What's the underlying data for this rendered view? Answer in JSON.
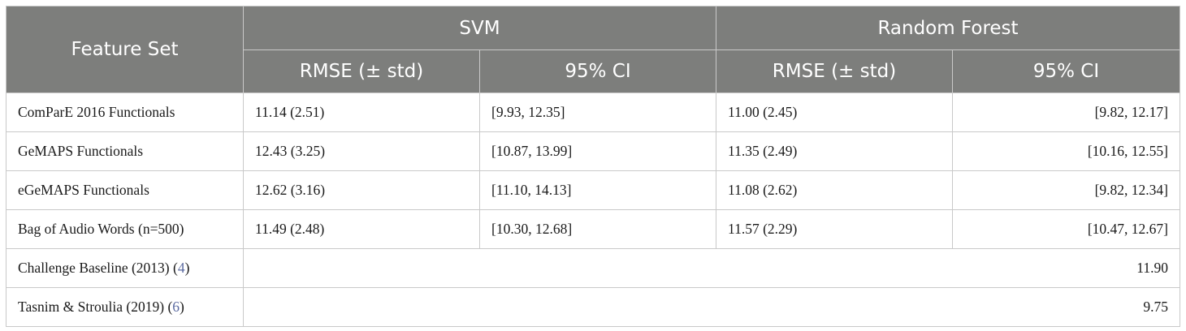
{
  "header": {
    "feature_set": "Feature Set",
    "svm": "SVM",
    "random_forest": "Random Forest",
    "svm_rmse": "RMSE (± std)",
    "svm_ci": "95% CI",
    "rf_rmse": "RMSE (± std)",
    "rf_ci": "95% CI"
  },
  "rows": [
    {
      "feature": "ComParE 2016 Functionals",
      "svm_rmse": "11.14 (2.51)",
      "svm_ci": "[9.93, 12.35]",
      "rf_rmse": "11.00 (2.45)",
      "rf_ci": "[9.82, 12.17]"
    },
    {
      "feature": "GeMAPS Functionals",
      "svm_rmse": "12.43 (3.25)",
      "svm_ci": "[10.87, 13.99]",
      "rf_rmse": "11.35 (2.49)",
      "rf_ci": "[10.16, 12.55]"
    },
    {
      "feature": "eGeMAPS Functionals",
      "svm_rmse": "12.62 (3.16)",
      "svm_ci": "[11.10, 14.13]",
      "rf_rmse": "11.08 (2.62)",
      "rf_ci": "[9.82, 12.34]"
    },
    {
      "feature": "Bag of Audio Words (n=500)",
      "svm_rmse": "11.49 (2.48)",
      "svm_ci": "[10.30, 12.68]",
      "rf_rmse": "11.57 (2.29)",
      "rf_ci": "[10.47, 12.67]"
    }
  ],
  "baselines": [
    {
      "label": "Challenge Baseline (2013)",
      "ref": "4",
      "value": "11.90"
    },
    {
      "label": "Tasnim & Stroulia (2019)",
      "ref": "6",
      "value": "9.75"
    }
  ]
}
